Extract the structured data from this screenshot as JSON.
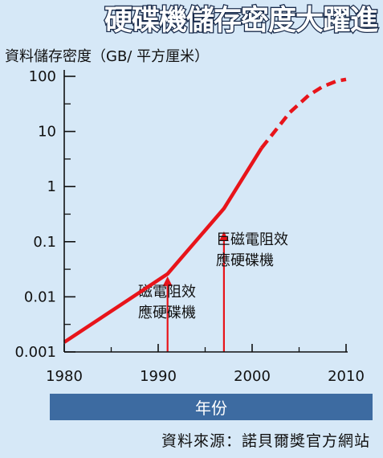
{
  "chart_data": {
    "type": "line",
    "title": "硬碟機儲存密度大躍進",
    "ylabel": "資料儲存密度（GB/ 平方厘米）",
    "xlabel": "年份",
    "yscale": "log",
    "ylim": [
      0.001,
      100
    ],
    "xlim": [
      1980,
      2010
    ],
    "xticks": [
      1980,
      1990,
      2000,
      2010
    ],
    "xtick_labels": [
      "1980",
      "1990",
      "2000",
      "2010"
    ],
    "yticks": [
      0.001,
      0.01,
      0.1,
      1,
      10,
      100
    ],
    "ytick_labels": [
      "0.001",
      "0.01",
      "0.1",
      "1",
      "10",
      "100"
    ],
    "series": [
      {
        "style": "solid",
        "color": "#e8141a",
        "x": [
          1980,
          1991,
          1997,
          2001
        ],
        "y": [
          0.0015,
          0.026,
          0.4,
          5
        ]
      },
      {
        "style": "dashed",
        "color": "#e8141a",
        "x": [
          2001,
          2004,
          2006,
          2007.5,
          2009,
          2010
        ],
        "y": [
          5,
          22,
          45,
          65,
          82,
          88
        ]
      }
    ],
    "annotations": [
      {
        "label_lines": [
          "磁電阻效",
          "應硬碟機"
        ],
        "x": 1991
      },
      {
        "label_lines": [
          "巨磁電阻效",
          "應硬碟機"
        ],
        "x": 1997
      }
    ],
    "source": "資料來源：諾貝爾獎官方網站",
    "arrow_color": "#e8141a",
    "grid": false
  }
}
